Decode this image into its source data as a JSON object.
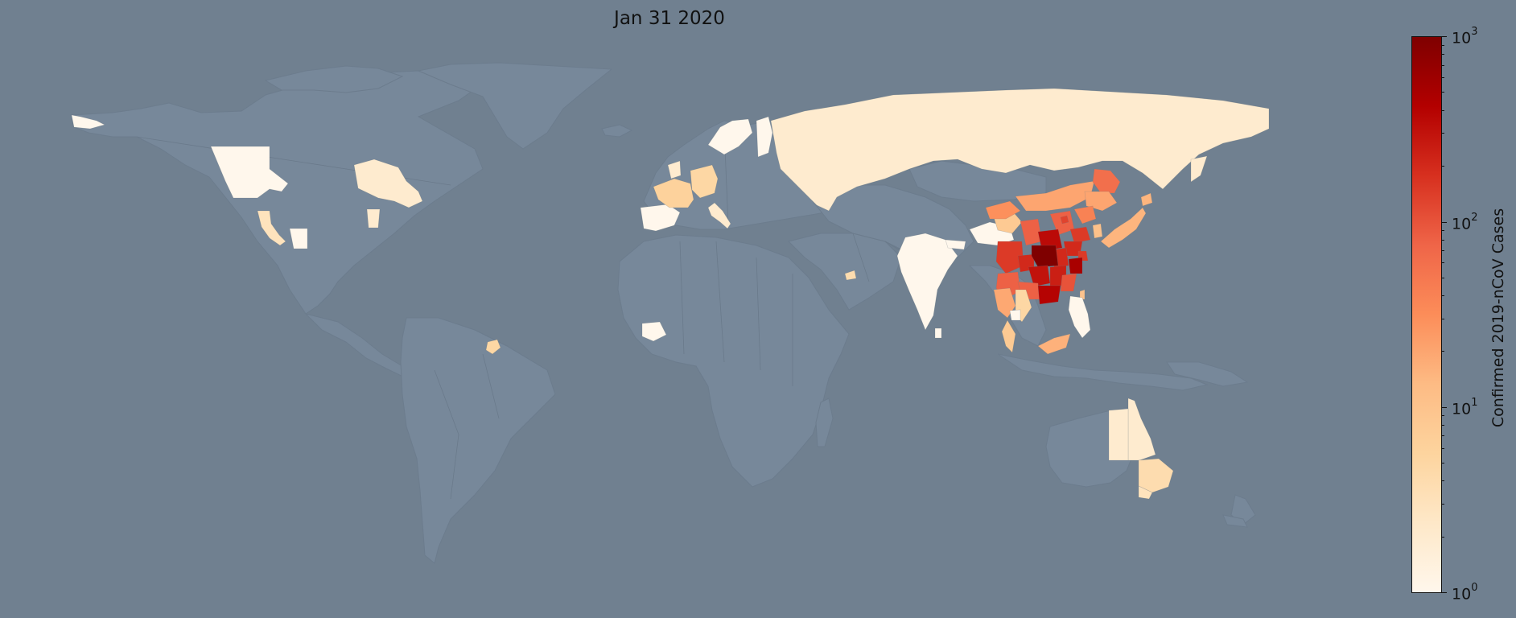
{
  "map": {
    "title": "Jan 31 2020",
    "background_color": "#708090",
    "land_color": "#77889a",
    "colormap": "OrRd",
    "colormap_stops": [
      "#fff7ec",
      "#fee8c8",
      "#fdd49e",
      "#fdbb84",
      "#fc8d59",
      "#ef6548",
      "#d7301f",
      "#b30000",
      "#7f0000"
    ]
  },
  "colorbar": {
    "label": "Confirmed 2019-nCoV Cases",
    "scale": "log",
    "range": [
      1,
      1000
    ],
    "ticks": [
      {
        "base": "10",
        "exp": "3"
      },
      {
        "base": "10",
        "exp": "2"
      },
      {
        "base": "10",
        "exp": "1"
      },
      {
        "base": "10",
        "exp": "0"
      }
    ]
  },
  "regions": [
    {
      "name": "China - Hubei",
      "cases": 1000
    },
    {
      "name": "China - Zhejiang",
      "cases": 500
    },
    {
      "name": "China - Guangdong",
      "cases": 400
    },
    {
      "name": "China - Henan",
      "cases": 350
    },
    {
      "name": "China - Hunan",
      "cases": 300
    },
    {
      "name": "China - Anhui",
      "cases": 200
    },
    {
      "name": "China - Jiangxi",
      "cases": 240
    },
    {
      "name": "China - Chongqing",
      "cases": 200
    },
    {
      "name": "China - Sichuan",
      "cases": 150
    },
    {
      "name": "China - Shandong",
      "cases": 150
    },
    {
      "name": "China - Jiangsu",
      "cases": 200
    },
    {
      "name": "China - Fujian",
      "cases": 100
    },
    {
      "name": "China - Shanghai",
      "cases": 150
    },
    {
      "name": "China - Beijing",
      "cases": 130
    },
    {
      "name": "China - Heilongjiang",
      "cases": 60
    },
    {
      "name": "China - Guangxi",
      "cases": 80
    },
    {
      "name": "China - Yunnan",
      "cases": 80
    },
    {
      "name": "China - Shaanxi",
      "cases": 80
    },
    {
      "name": "China - Hebei",
      "cases": 80
    },
    {
      "name": "China - Gansu",
      "cases": 30
    },
    {
      "name": "China - Inner Mongolia",
      "cases": 20
    },
    {
      "name": "China - Jilin",
      "cases": 20
    },
    {
      "name": "China - Liaoning",
      "cases": 40
    },
    {
      "name": "China - Tibet",
      "cases": 1
    },
    {
      "name": "China - Qinghai",
      "cases": 8
    },
    {
      "name": "Japan",
      "cases": 15
    },
    {
      "name": "South Korea",
      "cases": 11
    },
    {
      "name": "Taiwan",
      "cases": 10
    },
    {
      "name": "Thailand",
      "cases": 19
    },
    {
      "name": "Vietnam",
      "cases": 5
    },
    {
      "name": "Cambodia",
      "cases": 1
    },
    {
      "name": "Malaysia",
      "cases": 8
    },
    {
      "name": "Singapore",
      "cases": 16
    },
    {
      "name": "Philippines",
      "cases": 1
    },
    {
      "name": "India",
      "cases": 1
    },
    {
      "name": "Nepal",
      "cases": 1
    },
    {
      "name": "Sri Lanka",
      "cases": 1
    },
    {
      "name": "United Arab Emirates",
      "cases": 4
    },
    {
      "name": "Russia",
      "cases": 2
    },
    {
      "name": "Finland",
      "cases": 1
    },
    {
      "name": "Sweden",
      "cases": 1
    },
    {
      "name": "Germany",
      "cases": 5
    },
    {
      "name": "France",
      "cases": 6
    },
    {
      "name": "Italy",
      "cases": 2
    },
    {
      "name": "Spain",
      "cases": 1
    },
    {
      "name": "United Kingdom",
      "cases": 2
    },
    {
      "name": "Ivory Coast",
      "cases": 1
    },
    {
      "name": "US - California",
      "cases": 3
    },
    {
      "name": "US - Washington",
      "cases": 1
    },
    {
      "name": "US - Arizona",
      "cases": 1
    },
    {
      "name": "US - Illinois",
      "cases": 2
    },
    {
      "name": "Canada - British Columbia",
      "cases": 1
    },
    {
      "name": "Canada - Ontario",
      "cases": 2
    },
    {
      "name": "Caribbean",
      "cases": 5
    },
    {
      "name": "Australia - New South Wales",
      "cases": 4
    },
    {
      "name": "Australia - Queensland",
      "cases": 2
    },
    {
      "name": "Australia - Victoria",
      "cases": 3
    },
    {
      "name": "Australia - South Australia",
      "cases": 2
    }
  ]
}
